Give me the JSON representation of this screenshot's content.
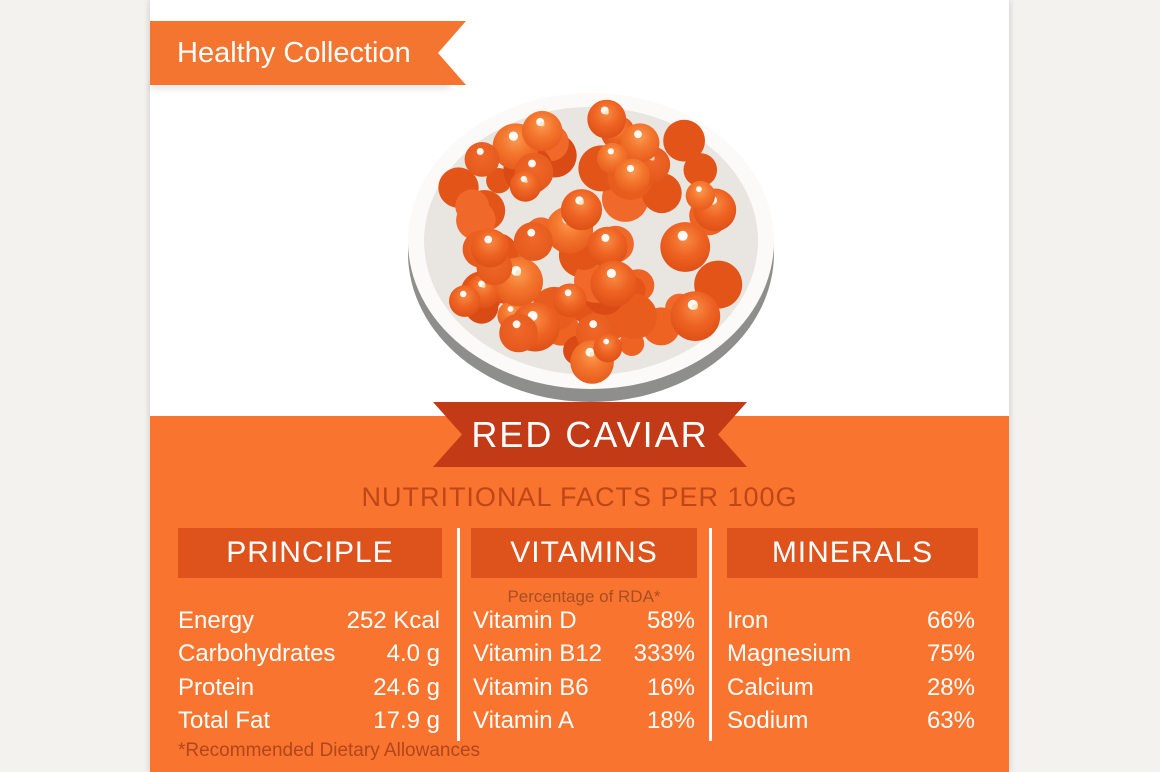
{
  "header": {
    "ribbon_label": "Healthy Collection"
  },
  "title_banner": {
    "label": "RED CAVIAR"
  },
  "section_title": "NUTRITIONAL FACTS PER 100G",
  "illustration": {
    "name": "red-caviar-plate"
  },
  "columns": [
    {
      "title": "PRINCIPLE",
      "rows": [
        {
          "label": "Energy",
          "value": "252 Kcal"
        },
        {
          "label": "Carbohydrates",
          "value": "4.0 g"
        },
        {
          "label": "Protein",
          "value": "24.6 g"
        },
        {
          "label": "Total Fat",
          "value": "17.9 g"
        }
      ]
    },
    {
      "title": "VITAMINS",
      "subtitle": "Percentage of RDA*",
      "rows": [
        {
          "label": "Vitamin D",
          "value": "58%"
        },
        {
          "label": "Vitamin B12",
          "value": "333%"
        },
        {
          "label": "Vitamin B6",
          "value": "16%"
        },
        {
          "label": "Vitamin A",
          "value": "18%"
        }
      ]
    },
    {
      "title": "MINERALS",
      "rows": [
        {
          "label": "Iron",
          "value": "66%"
        },
        {
          "label": "Magnesium",
          "value": "75%"
        },
        {
          "label": "Calcium",
          "value": "28%"
        },
        {
          "label": "Sodium",
          "value": "63%"
        }
      ]
    }
  ],
  "footnote": "*Recommended Dietary Allowances",
  "colors": {
    "background_gray": "#F3F2EF",
    "card_white": "#FFFFFF",
    "orange_main": "#F8742F",
    "orange_ribbon": "#F4752F",
    "orange_header_box": "#DE521C",
    "banner_red": "#C23A16",
    "title_text_red": "#C04517",
    "rda_text": "#A84E24",
    "footnote_text": "#B2461C",
    "plate_gray": "#E9E6E2",
    "plate_shadow": "#8E8E8C"
  }
}
